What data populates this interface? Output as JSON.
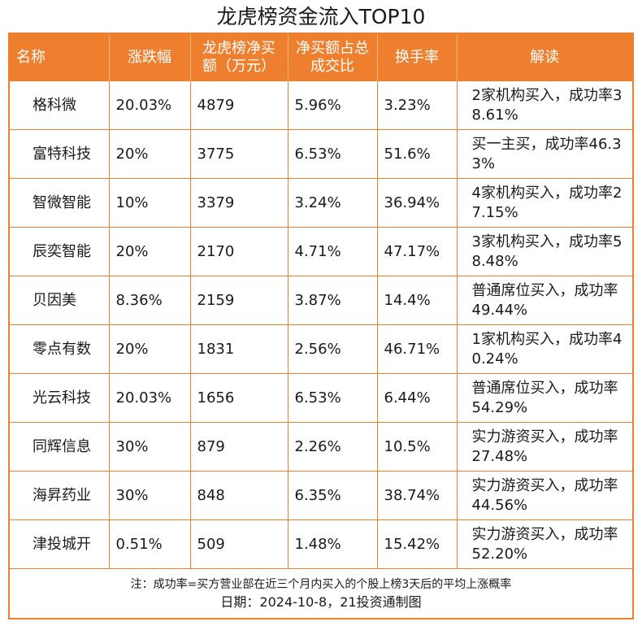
{
  "title": "龙虎榜资金流入TOP10",
  "colors": {
    "accent": "#ee7f2f",
    "header_text": "#ffffff"
  },
  "table": {
    "headers": [
      "名称",
      "涨跌幅",
      "龙虎榜净买额（万元）",
      "净买额占总成交比",
      "换手率",
      "解读"
    ],
    "rows": [
      [
        "格科微",
        "20.03%",
        "4879",
        "5.96%",
        "3.23%",
        "2家机构买入，成功率38.61%"
      ],
      [
        "富特科技",
        "20%",
        "3775",
        "6.53%",
        "51.6%",
        "买一主买，成功率46.33%"
      ],
      [
        "智微智能",
        "10%",
        "3379",
        "3.24%",
        "36.94%",
        "4家机构买入，成功率27.15%"
      ],
      [
        "辰奕智能",
        "20%",
        "2170",
        "4.71%",
        "47.17%",
        "3家机构买入，成功率58.48%"
      ],
      [
        "贝因美",
        "8.36%",
        "2159",
        "3.87%",
        "14.4%",
        "普通席位买入，成功率49.44%"
      ],
      [
        "零点有数",
        "20%",
        "1831",
        "2.56%",
        "46.71%",
        "1家机构买入，成功率40.24%"
      ],
      [
        "光云科技",
        "20.03%",
        "1656",
        "6.53%",
        "6.44%",
        "普通席位买入，成功率54.29%"
      ],
      [
        "同辉信息",
        "30%",
        "879",
        "2.26%",
        "10.5%",
        "实力游资买入，成功率27.48%"
      ],
      [
        "海昇药业",
        "30%",
        "848",
        "6.35%",
        "38.74%",
        "实力游资买入，成功率44.56%"
      ],
      [
        "津投城开",
        "0.51%",
        "509",
        "1.48%",
        "15.42%",
        "实力游资买入，成功率52.20%"
      ]
    ]
  },
  "footnote": "注：成功率=买方营业部在近三个月内买入的个股上榜3天后的平均上涨概率",
  "date_line": "日期：2024-10-8，21投资通制图"
}
